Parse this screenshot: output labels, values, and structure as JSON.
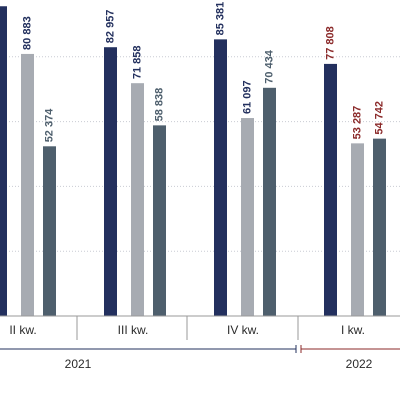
{
  "chart_data": {
    "type": "bar",
    "title": "",
    "xlabel": "",
    "ylabel": "",
    "ylim": [
      0,
      100000
    ],
    "grid": true,
    "colors": [
      "#23305e",
      "#a7abb2",
      "#4e5f6d"
    ],
    "highlight_color": "#8b2a2a",
    "categories": [
      "II kw.",
      "III kw.",
      "IV kw.",
      "I kw."
    ],
    "category_years": [
      "2021",
      "2021",
      "2021",
      "2022"
    ],
    "series": [
      {
        "values": [
          95600,
          82957,
          85381,
          77808
        ]
      },
      {
        "values": [
          80883,
          71858,
          61097,
          53287
        ]
      },
      {
        "values": [
          52374,
          58838,
          70434,
          54742
        ]
      }
    ],
    "value_labels": [
      [
        "",
        "80 883",
        "52 374"
      ],
      [
        "82 957",
        "71 858",
        "58 838"
      ],
      [
        "85 381",
        "61 097",
        "70 434"
      ],
      [
        "77 808",
        "53 287",
        "54 742"
      ]
    ],
    "highlighted_category": "I kw.",
    "years": [
      "2021",
      "2022"
    ]
  }
}
